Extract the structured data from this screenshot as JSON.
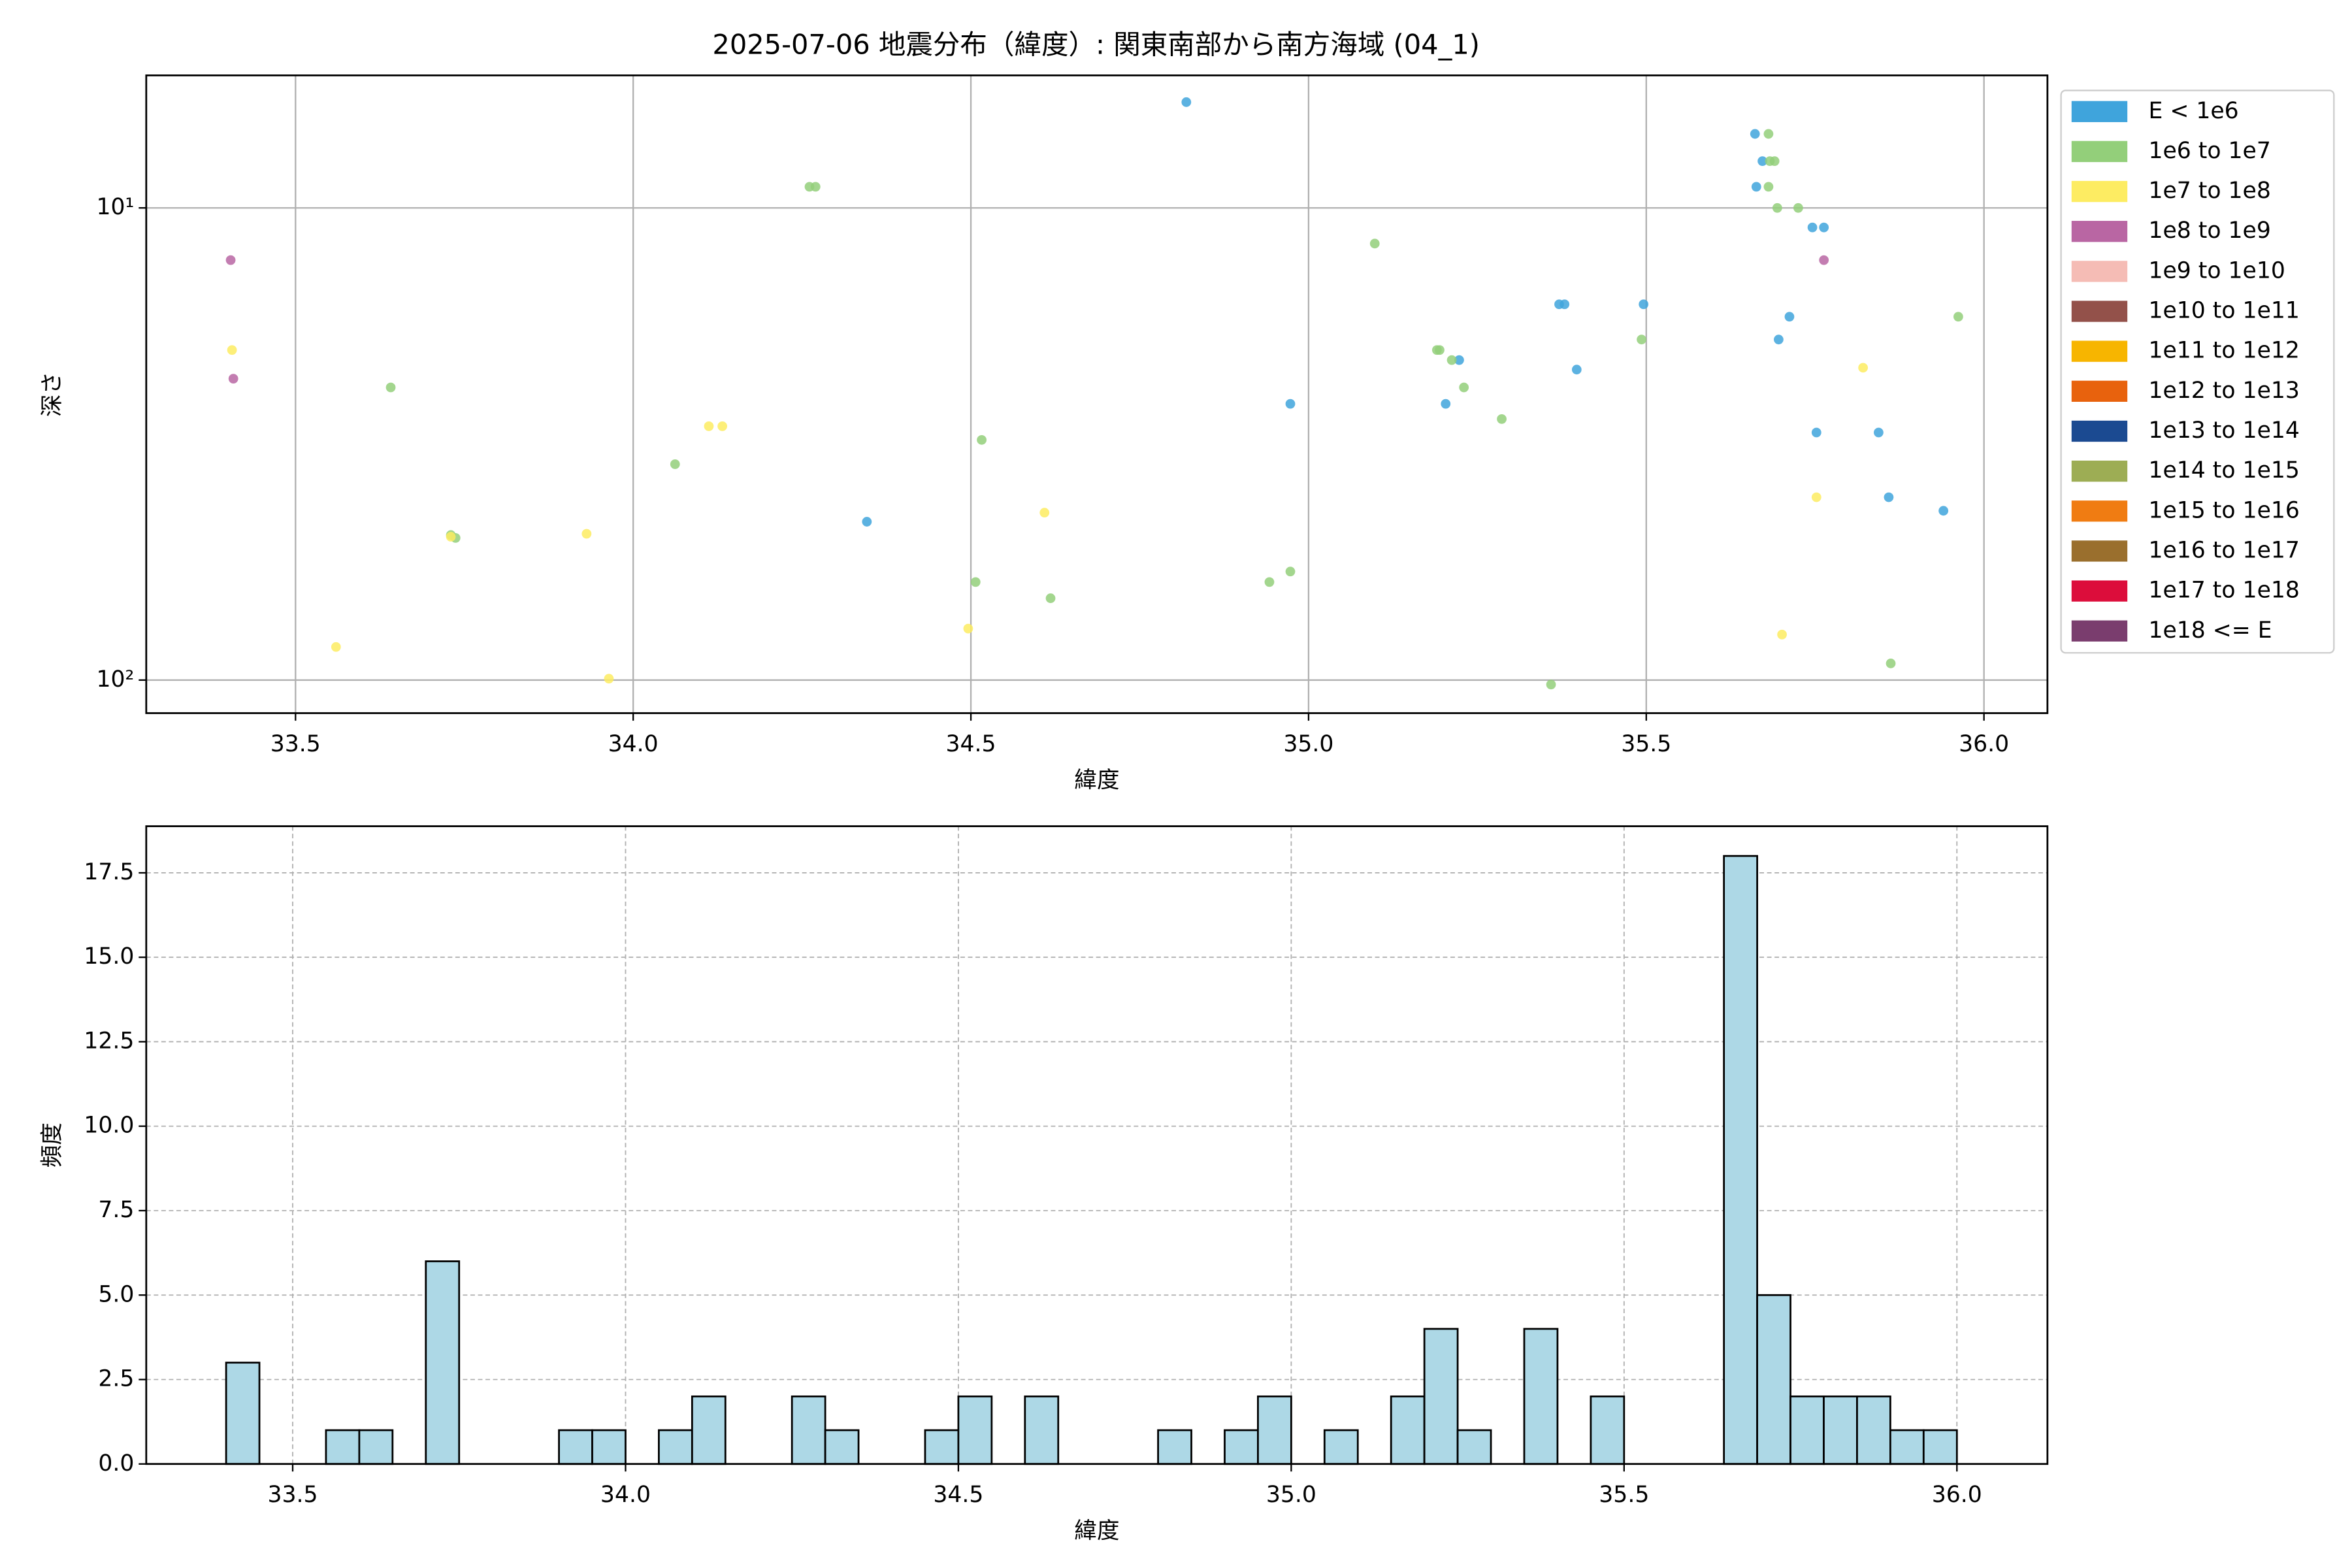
{
  "chart_data": [
    {
      "type": "scatter",
      "title": "2025-07-06 地震分布（緯度）: 関東南部から南方海域 (04_1)",
      "xlabel": "緯度",
      "ylabel": "深さ",
      "xlim": [
        33.279,
        36.094
      ],
      "xticks": [
        33.5,
        {
          "value": 34.0,
          "label": "34.0"
        },
        34.5,
        {
          "value": 35.0,
          "label": "35.0"
        },
        35.5,
        {
          "value": 36.0,
          "label": "36.0"
        }
      ],
      "ylim": [
        117.5,
        5.24
      ],
      "yscale": "log",
      "yticks": [
        {
          "value": 10,
          "label": "10¹"
        },
        {
          "value": 100,
          "label": "10²"
        }
      ],
      "grid": true,
      "legend": "right",
      "series": [
        {
          "name": "E < 1e6",
          "color": "#3fa4dc",
          "x": [
            34.819,
            35.661,
            35.672,
            35.663,
            35.746,
            35.763,
            35.371,
            35.379,
            35.496,
            35.712,
            35.696,
            35.223,
            35.397,
            35.203,
            34.973,
            35.752,
            35.844,
            35.859,
            35.94,
            34.346
          ],
          "values": [
            5.97,
            6.97,
            7.96,
            9.02,
            11.0,
            11.0,
            16.0,
            16.0,
            16.0,
            17.0,
            19.0,
            21.0,
            22.0,
            26.0,
            26.0,
            29.9,
            29.9,
            41.0,
            43.8,
            46.2
          ]
        },
        {
          "name": "1e6 to 1e7",
          "color": "#93cf7a",
          "x": [
            35.681,
            35.683,
            35.69,
            35.681,
            34.261,
            34.27,
            35.694,
            35.725,
            35.098,
            35.962,
            35.19,
            35.194,
            35.493,
            35.212,
            35.23,
            33.641,
            35.286,
            34.516,
            34.062,
            33.73,
            33.737,
            34.507,
            34.973,
            34.942,
            34.618,
            35.862,
            35.359
          ],
          "values": [
            6.97,
            7.96,
            7.96,
            9.02,
            9.02,
            9.02,
            10,
            10,
            11.9,
            17.0,
            20.0,
            20.0,
            19.0,
            21.0,
            24.0,
            24.0,
            28.0,
            31.0,
            34.9,
            49.3,
            50.0,
            62.0,
            58.9,
            62.0,
            67.1,
            92.2,
            102.2
          ]
        },
        {
          "name": "1e7 to 1e8",
          "color": "#fdec62",
          "x": [
            33.406,
            33.73,
            33.931,
            34.112,
            34.132,
            34.609,
            35.821,
            35.752,
            33.56,
            34.496,
            33.964,
            35.701
          ],
          "values": [
            20.0,
            49.7,
            49.0,
            29.0,
            29.0,
            44.2,
            21.8,
            41.0,
            85.1,
            77.8,
            99.3,
            80.1
          ]
        },
        {
          "name": "1e8 to 1e9",
          "color": "#b966a3",
          "x": [
            33.404,
            33.408,
            35.763
          ],
          "values": [
            12.9,
            23.0,
            12.9
          ]
        },
        {
          "name": "1e9 to 1e10",
          "color": "#f5bcb5",
          "x": [],
          "values": []
        },
        {
          "name": "1e10 to 1e11",
          "color": "#93514a",
          "x": [],
          "values": []
        },
        {
          "name": "1e11 to 1e12",
          "color": "#f7b500",
          "x": [],
          "values": []
        },
        {
          "name": "1e12 to 1e13",
          "color": "#e8620d",
          "x": [],
          "values": []
        },
        {
          "name": "1e13 to 1e14",
          "color": "#1b4a91",
          "x": [],
          "values": []
        },
        {
          "name": "1e14 to 1e15",
          "color": "#9dad54",
          "x": [],
          "values": []
        },
        {
          "name": "1e15 to 1e16",
          "color": "#f07c12",
          "x": [],
          "values": []
        },
        {
          "name": "1e16 to 1e17",
          "color": "#9a6f2d",
          "x": [],
          "values": []
        },
        {
          "name": "1e17 to 1e18",
          "color": "#dc0d3b",
          "x": [],
          "values": []
        },
        {
          "name": "1e18 <= E",
          "color": "#7a3d6e",
          "x": [],
          "values": []
        }
      ]
    },
    {
      "type": "histogram",
      "xlabel": "緯度",
      "ylabel": "頻度",
      "color": "#add8e6",
      "edgecolor": "#000000",
      "xlim": [
        33.28,
        36.136
      ],
      "xticks": [
        33.5,
        {
          "value": 34.0,
          "label": "34.0"
        },
        34.5,
        {
          "value": 35.0,
          "label": "35.0"
        },
        35.5,
        {
          "value": 36.0,
          "label": "36.0"
        }
      ],
      "ylim": [
        0,
        18.88
      ],
      "yticks": [
        {
          "value": 0,
          "label": "0.0"
        },
        2.5,
        {
          "value": 5,
          "label": "5.0"
        },
        7.5,
        {
          "value": 10,
          "label": "10.0"
        },
        12.5,
        {
          "value": 15,
          "label": "15.0"
        },
        17.5
      ],
      "grid": true,
      "bins": [
        33.4,
        33.45,
        33.5,
        33.55,
        33.6,
        33.65,
        33.7,
        33.75,
        33.8,
        33.85,
        33.9,
        33.95,
        34.0,
        34.05,
        34.1,
        34.15,
        34.2,
        34.25,
        34.3,
        34.35,
        34.4,
        34.45,
        34.5,
        34.55,
        34.6,
        34.65,
        34.7,
        34.75,
        34.8,
        34.85,
        34.9,
        34.95,
        35.0,
        35.05,
        35.1,
        35.15,
        35.2,
        35.25,
        35.3,
        35.35,
        35.4,
        35.45,
        35.5,
        35.55,
        35.6,
        35.65,
        35.7,
        35.75,
        35.8,
        35.85,
        35.9,
        35.95,
        36.0
      ],
      "values": [
        3,
        0,
        0,
        1,
        1,
        0,
        6,
        0,
        0,
        0,
        1,
        1,
        0,
        1,
        2,
        0,
        0,
        2,
        1,
        0,
        0,
        1,
        2,
        0,
        2,
        0,
        0,
        0,
        1,
        0,
        1,
        2,
        0,
        1,
        0,
        2,
        4,
        1,
        0,
        4,
        0,
        2,
        0,
        0,
        0,
        18,
        5,
        2,
        2,
        2,
        1,
        1
      ]
    }
  ]
}
